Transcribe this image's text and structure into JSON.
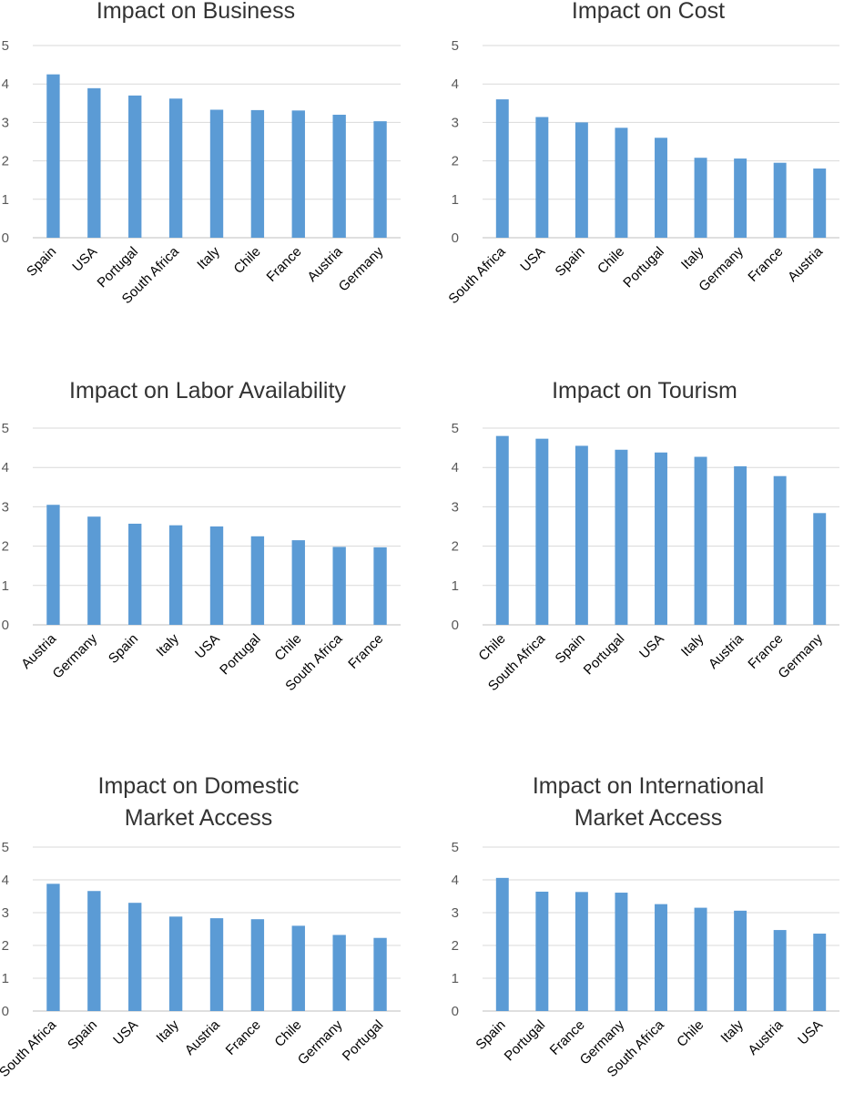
{
  "chart_data": [
    {
      "type": "bar",
      "title": "Impact on Business",
      "categories": [
        "Spain",
        "USA",
        "Portugal",
        "South Africa",
        "Italy",
        "Chile",
        "France",
        "Austria",
        "Germany"
      ],
      "values": [
        4.25,
        3.89,
        3.7,
        3.62,
        3.33,
        3.32,
        3.31,
        3.2,
        3.03
      ],
      "yticks": [
        "0",
        "1",
        "2",
        "3",
        "4",
        "5"
      ],
      "ylim": [
        0,
        5
      ],
      "grid": true,
      "bar_color": "#5b9bd5"
    },
    {
      "type": "bar",
      "title": "Impact on Cost",
      "categories": [
        "South Africa",
        "USA",
        "Spain",
        "Chile",
        "Portugal",
        "Italy",
        "Germany",
        "France",
        "Austria"
      ],
      "values": [
        3.6,
        3.14,
        3.0,
        2.86,
        2.6,
        2.08,
        2.06,
        1.95,
        1.8
      ],
      "yticks": [
        "0",
        "1",
        "2",
        "3",
        "4",
        "5"
      ],
      "ylim": [
        0,
        5
      ],
      "grid": true,
      "bar_color": "#5b9bd5"
    },
    {
      "type": "bar",
      "title": "Impact on Labor Availability",
      "categories": [
        "Austria",
        "Germany",
        "Spain",
        "Italy",
        "USA",
        "Portugal",
        "Chile",
        "South Africa",
        "France"
      ],
      "values": [
        3.05,
        2.75,
        2.57,
        2.53,
        2.5,
        2.25,
        2.15,
        1.98,
        1.97
      ],
      "yticks": [
        "0",
        "1",
        "2",
        "3",
        "4",
        "5"
      ],
      "ylim": [
        0,
        5
      ],
      "grid": true,
      "bar_color": "#5b9bd5"
    },
    {
      "type": "bar",
      "title": "Impact on Tourism",
      "categories": [
        "Chile",
        "South Africa",
        "Spain",
        "Portugal",
        "USA",
        "Italy",
        "Austria",
        "France",
        "Germany"
      ],
      "values": [
        4.8,
        4.73,
        4.55,
        4.45,
        4.38,
        4.27,
        4.03,
        3.78,
        2.84
      ],
      "yticks": [
        "0",
        "1",
        "2",
        "3",
        "4",
        "5"
      ],
      "ylim": [
        0,
        5
      ],
      "grid": true,
      "bar_color": "#5b9bd5"
    },
    {
      "type": "bar",
      "title": "Impact on Domestic Market Access",
      "categories": [
        "South Africa",
        "Spain",
        "USA",
        "Italy",
        "Austria",
        "France",
        "Chile",
        "Germany",
        "Portugal"
      ],
      "values": [
        3.88,
        3.66,
        3.3,
        2.88,
        2.83,
        2.8,
        2.6,
        2.32,
        2.23
      ],
      "yticks": [
        "0",
        "1",
        "2",
        "3",
        "4",
        "5"
      ],
      "ylim": [
        0,
        5
      ],
      "grid": true,
      "bar_color": "#5b9bd5"
    },
    {
      "type": "bar",
      "title": "Impact on International Market Access",
      "categories": [
        "Spain",
        "Portugal",
        "France",
        "Germany",
        "South Africa",
        "Chile",
        "Italy",
        "Austria",
        "USA"
      ],
      "values": [
        4.06,
        3.64,
        3.63,
        3.61,
        3.26,
        3.15,
        3.06,
        2.47,
        2.36
      ],
      "yticks": [
        "0",
        "1",
        "2",
        "3",
        "4",
        "5"
      ],
      "ylim": [
        0,
        5
      ],
      "grid": true,
      "bar_color": "#5b9bd5"
    }
  ]
}
